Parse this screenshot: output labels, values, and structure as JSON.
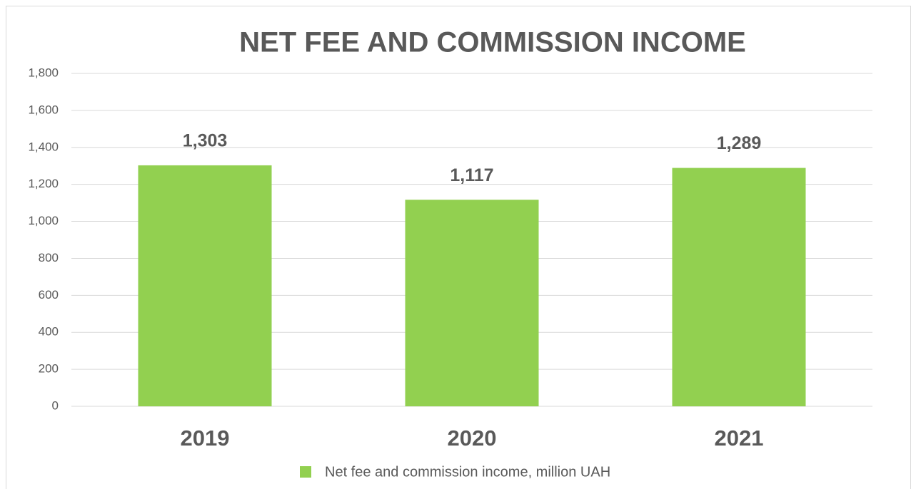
{
  "chart_data": {
    "type": "bar",
    "title": "NET FEE AND COMMISSION INCOME",
    "categories": [
      "2019",
      "2020",
      "2021"
    ],
    "series": [
      {
        "name": "Net fee and commission income, million UAH",
        "color": "#92d050",
        "values": [
          1303,
          1117,
          1289
        ],
        "value_labels": [
          "1,303",
          "1,117",
          "1,289"
        ]
      }
    ],
    "ylim": [
      0,
      1800
    ],
    "yticks": [
      0,
      200,
      400,
      600,
      800,
      {
        "value": 1000,
        "label": "1,000"
      },
      {
        "value": 1200,
        "label": "1,200"
      },
      {
        "value": 1400,
        "label": "1,400"
      },
      {
        "value": 1600,
        "label": "1,600"
      },
      {
        "value": 1800,
        "label": "1,800"
      }
    ],
    "grid": true,
    "legend": "bottom"
  }
}
